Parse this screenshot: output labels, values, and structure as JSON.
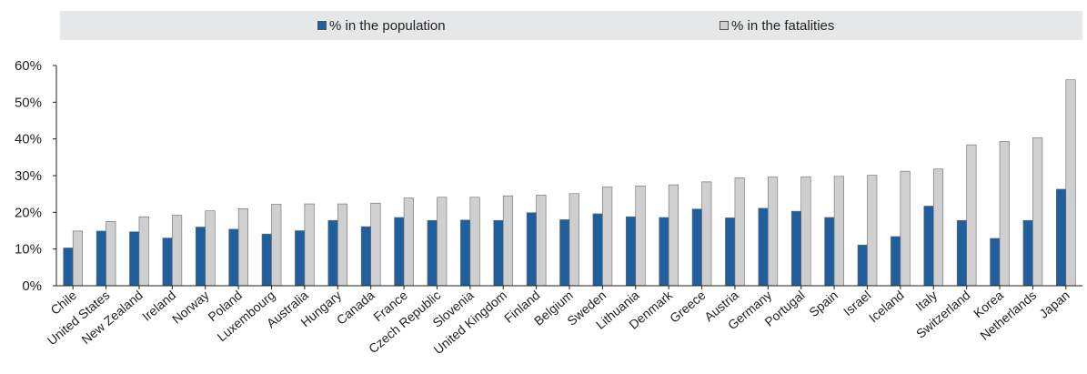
{
  "legend": {
    "items": [
      {
        "label": "% in the population",
        "color": "#1f5f9e"
      },
      {
        "label": "% in the fatalities",
        "color": "#cfcfcf"
      }
    ]
  },
  "chart_data": {
    "type": "bar",
    "title": "",
    "xlabel": "",
    "ylabel": "",
    "ylim": [
      0,
      60
    ],
    "yticks": [
      "0%",
      "10%",
      "20%",
      "30%",
      "40%",
      "50%",
      "60%"
    ],
    "grid": false,
    "legend_position": "top",
    "categories": [
      "Chile",
      "United States",
      "New Zealand",
      "Ireland",
      "Norway",
      "Poland",
      "Luxembourg",
      "Australia",
      "Hungary",
      "Canada",
      "France",
      "Czech Republic",
      "Slovenia",
      "United Kingdom",
      "Finland",
      "Belgium",
      "Sweden",
      "Lithuania",
      "Denmark",
      "Greece",
      "Austria",
      "Germany",
      "Portugal",
      "Spain",
      "Israel",
      "Iceland",
      "Italy",
      "Switzerland",
      "Korea",
      "Netherlands",
      "Japan"
    ],
    "series": [
      {
        "name": "% in the population",
        "color": "#1f5f9e",
        "values": [
          10.3,
          14.9,
          14.7,
          13.0,
          16.0,
          15.4,
          14.1,
          15.0,
          17.8,
          16.1,
          18.6,
          17.8,
          17.9,
          17.8,
          19.9,
          18.0,
          19.6,
          18.8,
          18.6,
          20.9,
          18.5,
          21.1,
          20.3,
          18.6,
          11.1,
          13.4,
          21.7,
          17.8,
          12.9,
          17.8,
          26.3
        ]
      },
      {
        "name": "% in the fatalities",
        "color": "#cfcfcf",
        "values": [
          14.9,
          17.5,
          18.8,
          19.2,
          20.4,
          21.0,
          22.2,
          22.3,
          22.3,
          22.5,
          23.9,
          24.1,
          24.1,
          24.5,
          24.7,
          25.1,
          26.9,
          27.2,
          27.5,
          28.3,
          29.4,
          29.6,
          29.7,
          29.8,
          30.1,
          31.2,
          31.8,
          38.4,
          39.3,
          40.3,
          56.1
        ]
      }
    ]
  }
}
